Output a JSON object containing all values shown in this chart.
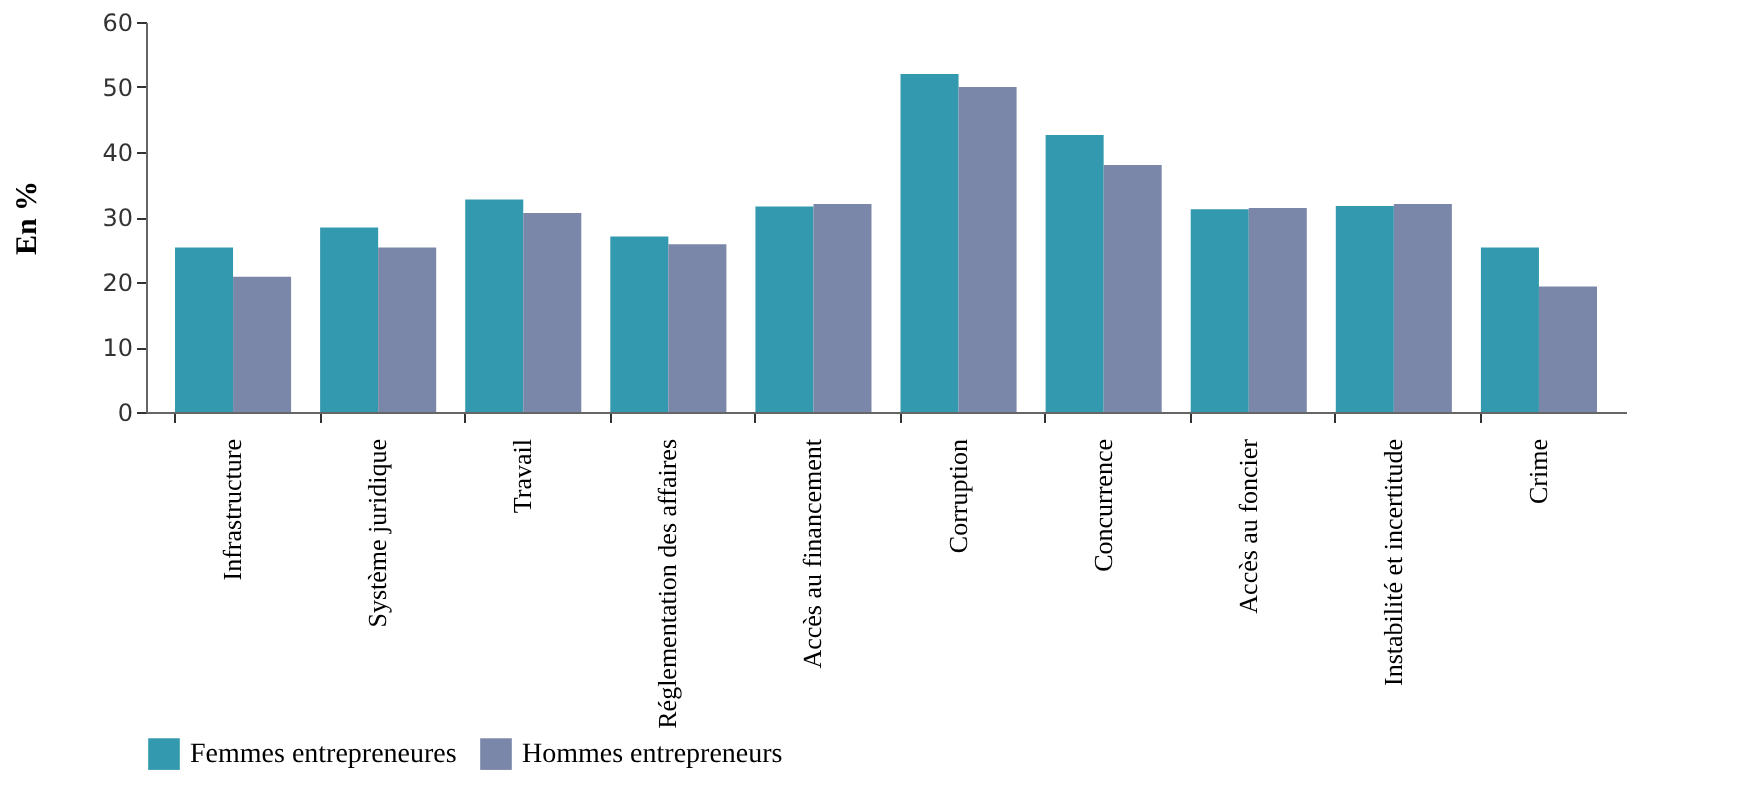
{
  "chart_data": {
    "type": "bar",
    "ylabel": "En %",
    "categories": [
      "Infrastructure",
      "Système juridique",
      "Travail",
      "Réglementation des affaires",
      "Accès au financement",
      "Corruption",
      "Concurrence",
      "Accès au foncier",
      "Instabilité et incertitude",
      "Crime"
    ],
    "series": [
      {
        "name": "Femmes entrepreneures",
        "color": "#3399ae",
        "values": [
          25.3,
          28.4,
          32.7,
          27.0,
          31.6,
          52.0,
          42.6,
          31.2,
          31.7,
          25.3
        ]
      },
      {
        "name": "Hommes entrepreneurs",
        "color": "#7a87a8",
        "values": [
          20.8,
          25.3,
          30.6,
          25.8,
          32.0,
          50.0,
          38.0,
          31.4,
          32.0,
          19.3
        ]
      }
    ],
    "ylim": [
      0,
      60
    ],
    "yticks": [
      0,
      10,
      20,
      30,
      40,
      50,
      60
    ],
    "grid": false,
    "legend": "bottom"
  }
}
